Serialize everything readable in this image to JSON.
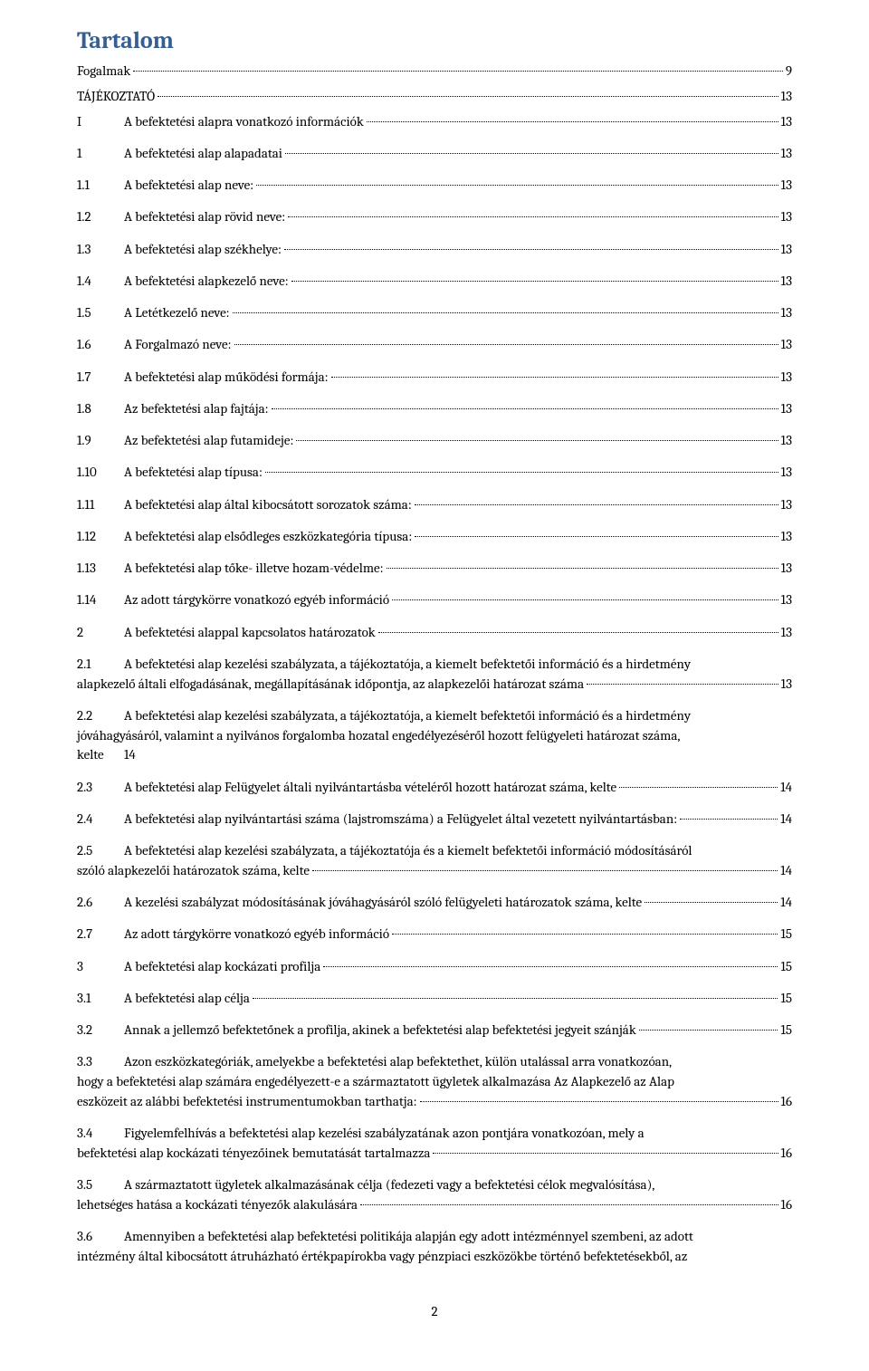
{
  "title": "Tartalom",
  "simple_entries": [
    {
      "label": "Fogalmak",
      "page": "9"
    },
    {
      "label": "TÁJÉKOZTATÓ",
      "page": "13"
    }
  ],
  "entries": [
    {
      "num": "I",
      "label": "A befektetési alapra vonatkozó információk",
      "page": "13"
    },
    {
      "num": "1",
      "label": "A befektetési alap alapadatai",
      "page": "13"
    },
    {
      "num": "1.1",
      "label": "A befektetési alap neve:",
      "page": "13"
    },
    {
      "num": "1.2",
      "label": "A befektetési alap rövid neve:",
      "page": "13"
    },
    {
      "num": "1.3",
      "label": "A befektetési alap székhelye:",
      "page": "13"
    },
    {
      "num": "1.4",
      "label": "A befektetési alapkezelő neve:",
      "page": "13"
    },
    {
      "num": "1.5",
      "label": "A Letétkezelő neve:",
      "page": "13"
    },
    {
      "num": "1.6",
      "label": "A Forgalmazó neve:",
      "page": "13"
    },
    {
      "num": "1.7",
      "label": "A befektetési alap működési formája:",
      "page": "13"
    },
    {
      "num": "1.8",
      "label": "Az befektetési alap fajtája:",
      "page": "13"
    },
    {
      "num": "1.9",
      "label": "Az befektetési alap futamideje:",
      "page": "13"
    },
    {
      "num": "1.10",
      "label": "A befektetési alap típusa:",
      "page": "13"
    },
    {
      "num": "1.11",
      "label": "A befektetési alap által kibocsátott sorozatok száma:",
      "page": "13"
    },
    {
      "num": "1.12",
      "label": "A befektetési alap elsődleges eszközkategória típusa:",
      "page": "13"
    },
    {
      "num": "1.13",
      "label": "A befektetési alap tőke- illetve hozam-védelme:",
      "page": "13"
    },
    {
      "num": "1.14",
      "label": "Az adott tárgykörre vonatkozó egyéb információ",
      "page": "13"
    },
    {
      "num": "2",
      "label": "A befektetési alappal kapcsolatos határozatok",
      "page": "13"
    }
  ],
  "multi_21": {
    "num": "2.1",
    "line1": "A befektetési alap kezelési szabályzata, a tájékoztatója, a kiemelt befektetői információ és a hirdetmény",
    "line2": "alapkezelő általi elfogadásának, megállapításának időpontja, az alapkezelői határozat száma",
    "page": "13"
  },
  "multi_22": {
    "num": "2.2",
    "line1": "A befektetési alap kezelési szabályzata, a tájékoztatója, a kiemelt befektetői információ és a hirdetmény",
    "line2": "jóváhagyásáról, valamint a nyilvános forgalomba hozatal engedélyezéséről hozott felügyeleti határozat száma,",
    "kelte_label": "kelte",
    "kelte_page": "14"
  },
  "entries2": [
    {
      "num": "2.3",
      "label": "A befektetési alap Felügyelet általi nyilvántartásba vételéről hozott határozat száma, kelte",
      "page": "14"
    },
    {
      "num": "2.4",
      "label": "A befektetési alap nyilvántartási száma (lajstromszáma) a Felügyelet által vezetett nyilvántartásban:",
      "page": "14"
    }
  ],
  "multi_25": {
    "num": "2.5",
    "line1": "A befektetési alap kezelési szabályzata, a tájékoztatója és a kiemelt befektetői információ módosításáról",
    "line2": "szóló alapkezelői határozatok száma, kelte",
    "page": "14"
  },
  "entries3": [
    {
      "num": "2.6",
      "label": "A kezelési szabályzat módosításának jóváhagyásáról szóló felügyeleti határozatok száma, kelte",
      "page": "14"
    },
    {
      "num": "2.7",
      "label": "Az adott tárgykörre vonatkozó egyéb információ",
      "page": "15"
    },
    {
      "num": "3",
      "label": "A befektetési alap kockázati profilja",
      "page": "15"
    },
    {
      "num": "3.1",
      "label": "A befektetési alap célja",
      "page": "15"
    },
    {
      "num": "3.2",
      "label": "Annak a jellemző befektetőnek a profilja, akinek a befektetési alap befektetési jegyeit szánják",
      "page": "15"
    }
  ],
  "multi_33": {
    "num": "3.3",
    "line1": "Azon eszközkategóriák, amelyekbe a befektetési alap befektethet, külön utalással arra vonatkozóan,",
    "line2": "hogy a befektetési alap számára engedélyezett-e a származtatott ügyletek alkalmazása Az Alapkezelő az Alap",
    "line3": "eszközeit az alábbi befektetési instrumentumokban tarthatja:",
    "page": "16"
  },
  "multi_34": {
    "num": "3.4",
    "line1": "Figyelemfelhívás a befektetési alap kezelési szabályzatának azon pontjára vonatkozóan, mely a",
    "line2": "befektetési alap kockázati tényezőinek bemutatását tartalmazza",
    "page": "16"
  },
  "multi_35": {
    "num": "3.5",
    "line1": "A származtatott ügyletek alkalmazásának célja (fedezeti vagy a befektetési célok megvalósítása),",
    "line2": "lehetséges hatása a kockázati tényezők alakulására",
    "page": "16"
  },
  "multi_36": {
    "num": "3.6",
    "line1": "Amennyiben a befektetési alap befektetési politikája alapján egy adott intézménnyel szembeni, az adott",
    "line2": "intézmény által kibocsátott átruházható értékpapírokba vagy pénzpiaci eszközökbe történő befektetésekből, az"
  },
  "page_number": "2"
}
